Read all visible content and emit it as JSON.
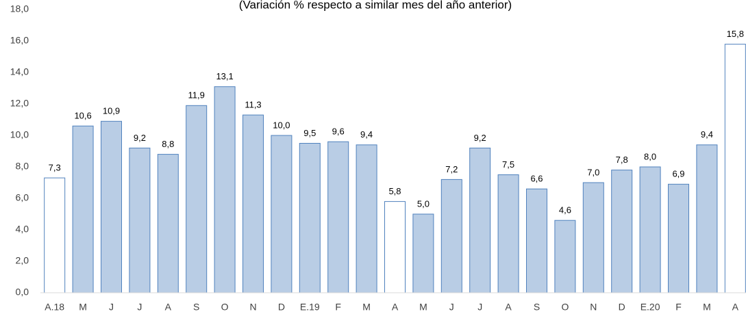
{
  "chart_data": {
    "type": "bar",
    "title": "(Variación % respecto a similar mes del año anterior)",
    "categories": [
      "A.18",
      "M",
      "J",
      "J",
      "A",
      "S",
      "O",
      "N",
      "D",
      "E.19",
      "F",
      "M",
      "A",
      "M",
      "J",
      "J",
      "A",
      "S",
      "O",
      "N",
      "D",
      "E.20",
      "F",
      "M",
      "A"
    ],
    "values": [
      7.3,
      10.6,
      10.9,
      9.2,
      8.8,
      11.9,
      13.1,
      11.3,
      10.0,
      9.5,
      9.6,
      9.4,
      5.8,
      5.0,
      7.2,
      9.2,
      7.5,
      6.6,
      4.6,
      7.0,
      7.8,
      8.0,
      6.9,
      9.4,
      15.8
    ],
    "value_labels": [
      "7,3",
      "10,6",
      "10,9",
      "9,2",
      "8,8",
      "11,9",
      "13,1",
      "11,3",
      "10,0",
      "9,5",
      "9,6",
      "9,4",
      "5,8",
      "5,0",
      "7,2",
      "9,2",
      "7,5",
      "6,6",
      "4,6",
      "7,0",
      "7,8",
      "8,0",
      "6,9",
      "9,4",
      "15,8"
    ],
    "colors": [
      "#ffffff",
      "#b9cde5",
      "#b9cde5",
      "#b9cde5",
      "#b9cde5",
      "#b9cde5",
      "#b9cde5",
      "#b9cde5",
      "#b9cde5",
      "#b9cde5",
      "#b9cde5",
      "#b9cde5",
      "#ffffff",
      "#b9cde5",
      "#b9cde5",
      "#b9cde5",
      "#b9cde5",
      "#b9cde5",
      "#b9cde5",
      "#b9cde5",
      "#b9cde5",
      "#b9cde5",
      "#b9cde5",
      "#b9cde5",
      "#ffffff"
    ],
    "border_color": "#4f81bd",
    "ylim": [
      0,
      18
    ],
    "yticks": [
      {
        "value": 0,
        "label": "0,0"
      },
      {
        "value": 2,
        "label": "2,0"
      },
      {
        "value": 4,
        "label": "4,0"
      },
      {
        "value": 6,
        "label": "6,0"
      },
      {
        "value": 8,
        "label": "8,0"
      },
      {
        "value": 10,
        "label": "10,0"
      },
      {
        "value": 12,
        "label": "12,0"
      },
      {
        "value": 14,
        "label": "14,0"
      },
      {
        "value": 16,
        "label": "16,0"
      },
      {
        "value": 18,
        "label": "18,0"
      }
    ],
    "grid": false
  }
}
